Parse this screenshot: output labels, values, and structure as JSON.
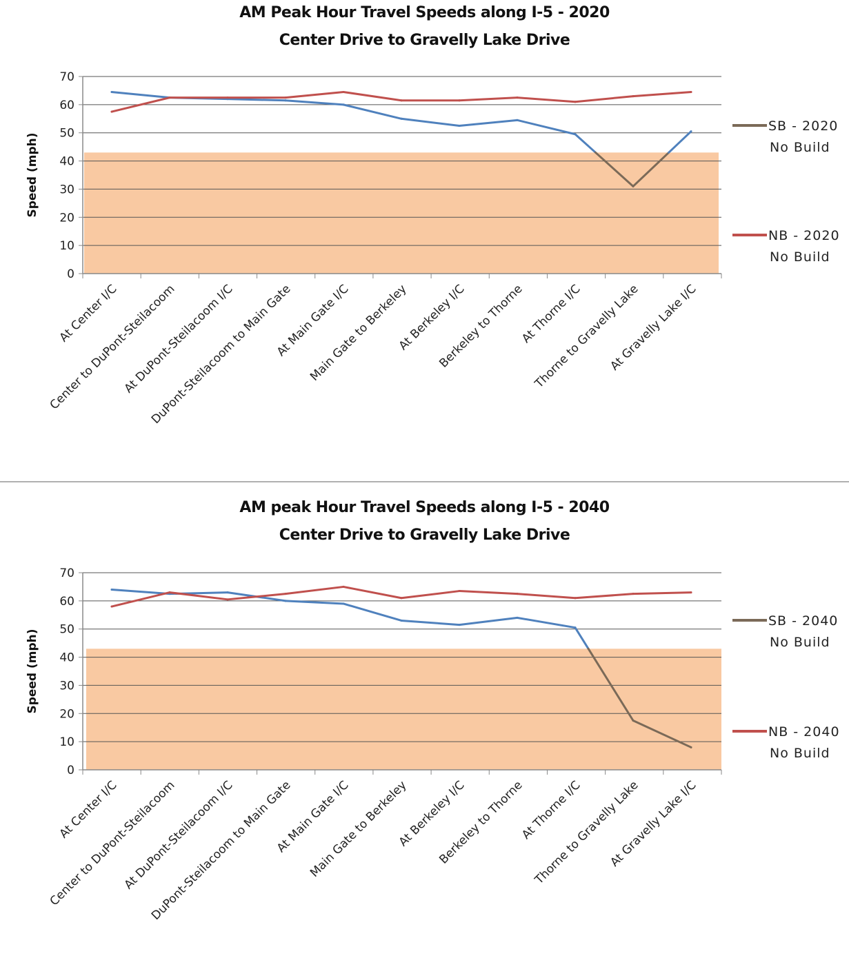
{
  "chart_data": [
    {
      "type": "line",
      "title": "AM Peak Hour Travel Speeds along I-5 - 2020",
      "subtitle": "Center Drive to Gravelly Lake Drive",
      "ylabel": "Speed (mph)",
      "xlabel": "",
      "ylim": [
        0,
        70
      ],
      "yticks": [
        0,
        10,
        20,
        30,
        40,
        50,
        60,
        70
      ],
      "grid": true,
      "legend_position": "right",
      "congestion_band_below": 43,
      "categories": [
        "At Center I/C",
        "Center to DuPont-Steilacoom",
        "At DuPont-Steilacoom I/C",
        "DuPont-Steilacoom to Main Gate",
        "At Main Gate I/C",
        "Main Gate to Berkeley",
        "At Berkeley I/C",
        "Berkeley to Thorne",
        "At Thorne I/C",
        "Thorne to Gravelly Lake",
        "At Gravelly Lake I/C"
      ],
      "series": [
        {
          "name": "SB - 2020 No Build",
          "name_lines": [
            "SB - 2020",
            "No Build"
          ],
          "color": "#4f81bd",
          "values": [
            64.5,
            62.5,
            62,
            61.5,
            60,
            55,
            52.5,
            54.5,
            49.5,
            31,
            50.5
          ]
        },
        {
          "name": "NB - 2020 No Build",
          "name_lines": [
            "NB - 2020",
            "No Build"
          ],
          "color": "#c0504d",
          "values": [
            57.5,
            62.5,
            62.5,
            62.5,
            64.5,
            61.5,
            61.5,
            62.5,
            61,
            63,
            64.5
          ]
        }
      ]
    },
    {
      "type": "line",
      "title": "AM peak Hour Travel Speeds along I-5 - 2040",
      "subtitle": "Center Drive to Gravelly Lake Drive",
      "ylabel": "Speed (mph)",
      "xlabel": "",
      "ylim": [
        0,
        70
      ],
      "yticks": [
        0,
        10,
        20,
        30,
        40,
        50,
        60,
        70
      ],
      "grid": true,
      "legend_position": "right",
      "congestion_band_below": 43,
      "categories": [
        "At Center I/C",
        "Center to DuPont-Steilacoom",
        "At DuPont-Steilacoom I/C",
        "DuPont-Steilacoom to Main Gate",
        "At Main Gate I/C",
        "Main Gate to Berkeley",
        "At Berkeley I/C",
        "Berkeley to Thorne",
        "At Thorne I/C",
        "Thorne to Gravelly Lake",
        "At Gravelly Lake I/C"
      ],
      "series": [
        {
          "name": "SB - 2040 No Build",
          "name_lines": [
            "SB - 2040",
            "No Build"
          ],
          "color": "#4f81bd",
          "values": [
            64,
            62.5,
            63,
            60,
            59,
            53,
            51.5,
            54,
            50.5,
            17.5,
            8
          ]
        },
        {
          "name": "NB - 2040 No Build",
          "name_lines": [
            "NB - 2040",
            "No Build"
          ],
          "color": "#c0504d",
          "values": [
            58,
            63,
            60.5,
            62.5,
            65,
            61,
            63.5,
            62.5,
            61,
            62.5,
            63
          ]
        }
      ]
    }
  ],
  "style": {
    "band_color": "#f7b783",
    "band_opacity": 0.75,
    "congested_line_color": "#7b6a58",
    "grid_color": "#555555",
    "axis_color": "#888888"
  }
}
